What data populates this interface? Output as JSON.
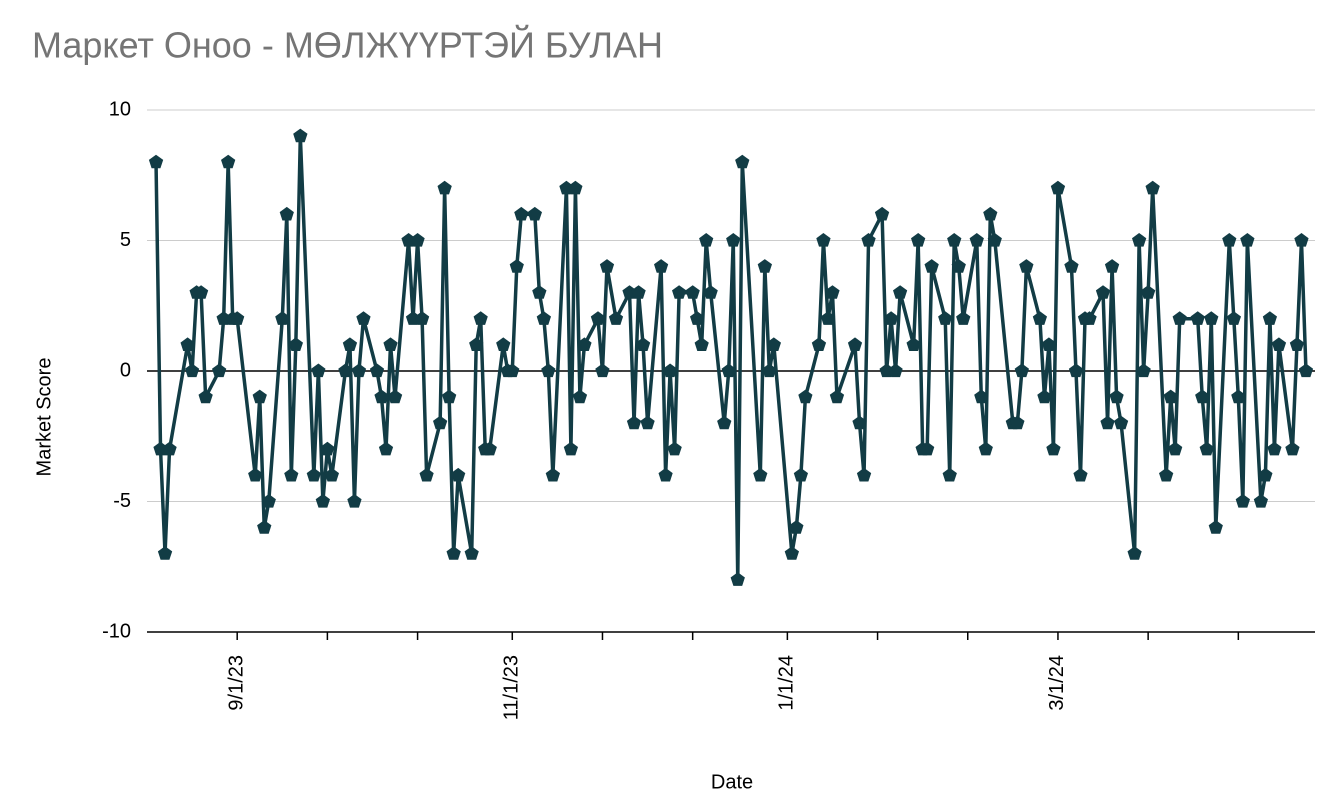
{
  "chart_data": {
    "type": "line",
    "title": "Маркет Оноо - МӨЛЖҮҮРТЭЙ БУЛАН",
    "x_label": "Date",
    "y_label": "Market Score",
    "x": [
      "8/14/23",
      "8/15/23",
      "8/16/23",
      "8/17/23",
      "8/21/23",
      "8/22/23",
      "8/23/23",
      "8/24/23",
      "8/25/23",
      "8/28/23",
      "8/29/23",
      "8/30/23",
      "8/31/23",
      "9/1/23",
      "9/5/23",
      "9/6/23",
      "9/7/23",
      "9/8/23",
      "9/11/23",
      "9/12/23",
      "9/13/23",
      "9/14/23",
      "9/15/23",
      "9/18/23",
      "9/19/23",
      "9/20/23",
      "9/21/23",
      "9/22/23",
      "9/25/23",
      "9/26/23",
      "9/27/23",
      "9/28/23",
      "9/29/23",
      "10/2/23",
      "10/3/23",
      "10/4/23",
      "10/5/23",
      "10/6/23",
      "10/9/23",
      "10/10/23",
      "10/11/23",
      "10/12/23",
      "10/13/23",
      "10/16/23",
      "10/17/23",
      "10/18/23",
      "10/19/23",
      "10/20/23",
      "10/23/23",
      "10/24/23",
      "10/25/23",
      "10/26/23",
      "10/27/23",
      "10/30/23",
      "10/31/23",
      "11/1/23",
      "11/2/23",
      "11/3/23",
      "11/6/23",
      "11/7/23",
      "11/8/23",
      "11/9/23",
      "11/10/23",
      "11/13/23",
      "11/14/23",
      "11/15/23",
      "11/16/23",
      "11/17/23",
      "11/20/23",
      "11/21/23",
      "11/22/23",
      "11/24/23",
      "11/27/23",
      "11/28/23",
      "11/29/23",
      "11/30/23",
      "12/1/23",
      "12/4/23",
      "12/5/23",
      "12/6/23",
      "12/7/23",
      "12/8/23",
      "12/11/23",
      "12/12/23",
      "12/13/23",
      "12/14/23",
      "12/15/23",
      "12/18/23",
      "12/19/23",
      "12/20/23",
      "12/21/23",
      "12/22/23",
      "12/26/23",
      "12/27/23",
      "12/28/23",
      "12/29/23",
      "1/2/24",
      "1/3/24",
      "1/4/24",
      "1/5/24",
      "1/8/24",
      "1/9/24",
      "1/10/24",
      "1/11/24",
      "1/12/24",
      "1/16/24",
      "1/17/24",
      "1/18/24",
      "1/19/24",
      "1/22/24",
      "1/23/24",
      "1/24/24",
      "1/25/24",
      "1/26/24",
      "1/29/24",
      "1/30/24",
      "1/31/24",
      "2/1/24",
      "2/2/24",
      "2/5/24",
      "2/6/24",
      "2/7/24",
      "2/8/24",
      "2/9/24",
      "2/12/24",
      "2/13/24",
      "2/14/24",
      "2/15/24",
      "2/16/24",
      "2/20/24",
      "2/21/24",
      "2/22/24",
      "2/23/24",
      "2/26/24",
      "2/27/24",
      "2/28/24",
      "2/29/24",
      "3/1/24",
      "3/4/24",
      "3/5/24",
      "3/6/24",
      "3/7/24",
      "3/8/24",
      "3/11/24",
      "3/12/24",
      "3/13/24",
      "3/14/24",
      "3/15/24",
      "3/18/24",
      "3/19/24",
      "3/20/24",
      "3/21/24",
      "3/22/24",
      "3/25/24",
      "3/26/24",
      "3/27/24",
      "3/28/24",
      "4/1/24",
      "4/2/24",
      "4/3/24",
      "4/4/24",
      "4/5/24",
      "4/8/24",
      "4/9/24",
      "4/10/24",
      "4/11/24",
      "4/12/24",
      "4/15/24",
      "4/16/24",
      "4/17/24",
      "4/18/24",
      "4/19/24",
      "4/22/24",
      "4/23/24",
      "4/24/24",
      "4/25/24"
    ],
    "series": [
      {
        "name": "Market Score",
        "color": "#123c45",
        "marker": "pentagon",
        "values": [
          8,
          -3,
          -7,
          -3,
          1,
          0,
          3,
          3,
          -1,
          0,
          2,
          8,
          2,
          2,
          -4,
          -1,
          -6,
          -5,
          2,
          6,
          -4,
          1,
          9,
          -4,
          0,
          -5,
          -3,
          -4,
          0,
          1,
          -5,
          0,
          2,
          0,
          -1,
          -3,
          1,
          -1,
          5,
          2,
          5,
          2,
          -4,
          -2,
          7,
          -1,
          -7,
          -4,
          -7,
          1,
          2,
          -3,
          -3,
          1,
          0,
          0,
          4,
          6,
          6,
          3,
          2,
          0,
          -4,
          7,
          -3,
          7,
          -1,
          1,
          2,
          0,
          4,
          2,
          3,
          -2,
          3,
          1,
          -2,
          4,
          -4,
          0,
          -3,
          3,
          3,
          2,
          1,
          5,
          3,
          -2,
          0,
          5,
          -8,
          8,
          -4,
          4,
          0,
          1,
          -7,
          -6,
          -4,
          -1,
          1,
          5,
          2,
          3,
          -1,
          1,
          -2,
          -4,
          5,
          6,
          0,
          2,
          0,
          3,
          1,
          5,
          -3,
          -3,
          4,
          2,
          -4,
          5,
          4,
          2,
          5,
          -1,
          -3,
          6,
          5,
          -2,
          -2,
          0,
          4,
          2,
          -1,
          1,
          -3,
          7,
          4,
          0,
          -4,
          2,
          2,
          3,
          -2,
          4,
          -1,
          -2,
          -7,
          5,
          0,
          3,
          7,
          -4,
          -1,
          -3,
          2,
          2,
          -1,
          -3,
          2,
          -6,
          5,
          2,
          -1,
          -5,
          5,
          -5,
          -4,
          2,
          -3,
          1,
          -3,
          1,
          5,
          0
        ]
      }
    ],
    "xlim": [
      "8/12/23",
      "4/27/24"
    ],
    "xticks": [
      "9/1/23",
      "11/1/23",
      "1/1/24",
      "3/1/24"
    ],
    "x_minor_ticks": [
      "9/21/23",
      "10/11/23",
      "11/21/23",
      "12/11/23",
      "1/21/24",
      "2/10/24",
      "3/21/24",
      "4/10/24"
    ],
    "ylim": [
      -10,
      10
    ],
    "yticks": [
      -10,
      -5,
      0,
      5,
      10
    ],
    "grid": true
  }
}
